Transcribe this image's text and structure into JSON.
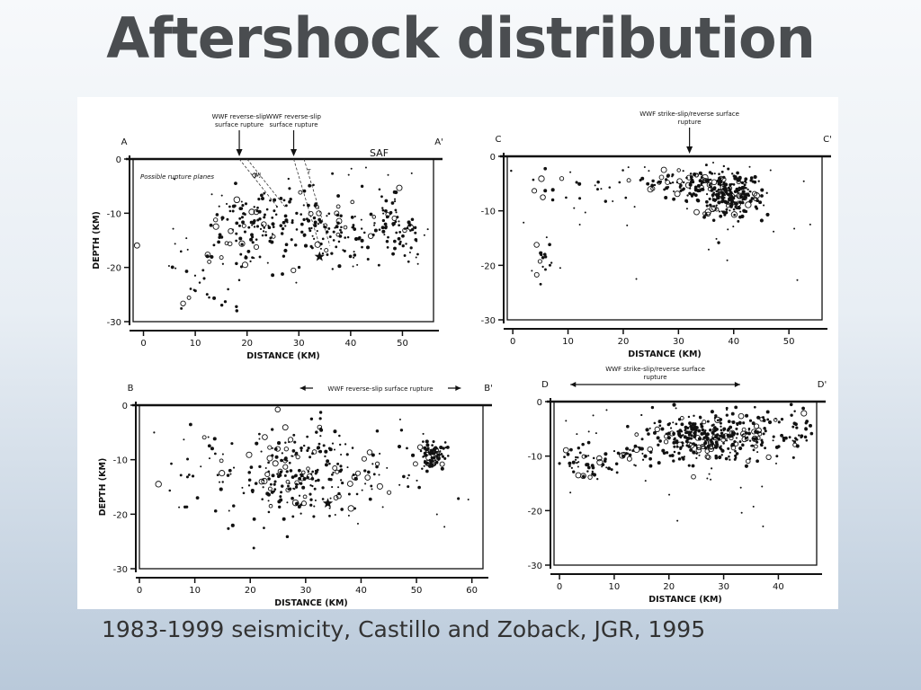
{
  "slide": {
    "title": "Aftershock distribution",
    "caption": "1983-1999 seismicity, Castillo and Zoback, JGR, 1995"
  },
  "chart_data": [
    {
      "type": "scatter",
      "id": "A",
      "section_labels": [
        "A",
        "A'"
      ],
      "xlabel": "DISTANCE (KM)",
      "ylabel": "DEPTH (KM)",
      "xlim": [
        -2,
        56
      ],
      "ylim": [
        -30,
        0
      ],
      "xticks": [
        0,
        10,
        20,
        30,
        40,
        50
      ],
      "yticks": [
        0,
        -10,
        -20,
        -30
      ],
      "annotations": [
        {
          "text": "WWF reverse-slip surface rupture",
          "x": 18.5
        },
        {
          "text": "WWF reverse-slip surface rupture",
          "x": 29
        }
      ],
      "labels": [
        "SAF",
        "Possible rupture planes"
      ],
      "fault_labels": [
        "WJ",
        "T"
      ],
      "clusters": [
        {
          "cx": 20,
          "cy": -12,
          "sx": 3.5,
          "sy": 3,
          "n": 90
        },
        {
          "cx": 32,
          "cy": -12,
          "sx": 5,
          "sy": 4,
          "n": 90
        },
        {
          "cx": 39,
          "cy": -14.5,
          "sx": 3,
          "sy": 2,
          "n": 45
        },
        {
          "cx": 47,
          "cy": -10,
          "sx": 1.5,
          "sy": 3,
          "n": 40
        },
        {
          "cx": 50,
          "cy": -14.5,
          "sx": 2,
          "sy": 2,
          "n": 35
        },
        {
          "cx": 13,
          "cy": -20,
          "sx": 5,
          "sy": 4,
          "n": 35
        }
      ]
    },
    {
      "type": "scatter",
      "id": "C",
      "section_labels": [
        "C",
        "C'"
      ],
      "xlabel": "DISTANCE (KM)",
      "ylabel": "",
      "xlim": [
        -1,
        56
      ],
      "ylim": [
        -30,
        0
      ],
      "xticks": [
        0,
        10,
        20,
        30,
        40,
        50
      ],
      "yticks": [
        0,
        -10,
        -20,
        -30
      ],
      "annotations": [
        {
          "text": "WWF strike-slip/reverse surface rupture",
          "x": 32
        }
      ],
      "clusters": [
        {
          "cx": 39,
          "cy": -7,
          "sx": 3,
          "sy": 2.2,
          "n": 230
        },
        {
          "cx": 33,
          "cy": -5,
          "sx": 2.5,
          "sy": 1.5,
          "n": 60
        },
        {
          "cx": 27,
          "cy": -5,
          "sx": 2,
          "sy": 1.5,
          "n": 30
        },
        {
          "cx": 10,
          "cy": -5.5,
          "sx": 6,
          "sy": 1.8,
          "n": 25
        },
        {
          "cx": 5.5,
          "cy": -19,
          "sx": 1,
          "sy": 2,
          "n": 14
        }
      ]
    },
    {
      "type": "scatter",
      "id": "B",
      "section_labels": [
        "B",
        "B'"
      ],
      "xlabel": "DISTANCE (KM)",
      "ylabel": "DEPTH (KM)",
      "xlim": [
        0,
        62
      ],
      "ylim": [
        -30,
        0
      ],
      "xticks": [
        0,
        10,
        20,
        30,
        40,
        50,
        60
      ],
      "yticks": [
        0,
        -10,
        -20,
        -30
      ],
      "annotations": [
        {
          "text": "WWF reverse-slip surface rupture",
          "x_range": [
            29,
            58
          ]
        }
      ],
      "clusters": [
        {
          "cx": 27,
          "cy": -13,
          "sx": 5,
          "sy": 4.5,
          "n": 180
        },
        {
          "cx": 53,
          "cy": -9,
          "sx": 1.2,
          "sy": 1.5,
          "n": 70
        },
        {
          "cx": 38,
          "cy": -13,
          "sx": 7,
          "sy": 4,
          "n": 70
        },
        {
          "cx": 13,
          "cy": -13,
          "sx": 4,
          "sy": 5,
          "n": 30
        }
      ]
    },
    {
      "type": "scatter",
      "id": "D",
      "section_labels": [
        "D",
        "D'"
      ],
      "xlabel": "DISTANCE (KM)",
      "ylabel": "",
      "xlim": [
        -1,
        47
      ],
      "ylim": [
        -30,
        0
      ],
      "xticks": [
        0,
        10,
        20,
        30,
        40
      ],
      "yticks": [
        0,
        -10,
        -20,
        -30
      ],
      "annotations": [
        {
          "text": "WWF strike-slip/reverse surface rupture",
          "x_range": [
            2,
            33
          ]
        }
      ],
      "clusters": [
        {
          "cx": 26,
          "cy": -6.5,
          "sx": 4.5,
          "sy": 2.2,
          "n": 260
        },
        {
          "cx": 36,
          "cy": -6,
          "sx": 4,
          "sy": 2,
          "n": 80
        },
        {
          "cx": 5,
          "cy": -11.5,
          "sx": 2.5,
          "sy": 1.3,
          "n": 40
        },
        {
          "cx": 14,
          "cy": -10,
          "sx": 4,
          "sy": 1.5,
          "n": 45
        },
        {
          "cx": 44,
          "cy": -6,
          "sx": 1.5,
          "sy": 2,
          "n": 25
        }
      ]
    }
  ]
}
